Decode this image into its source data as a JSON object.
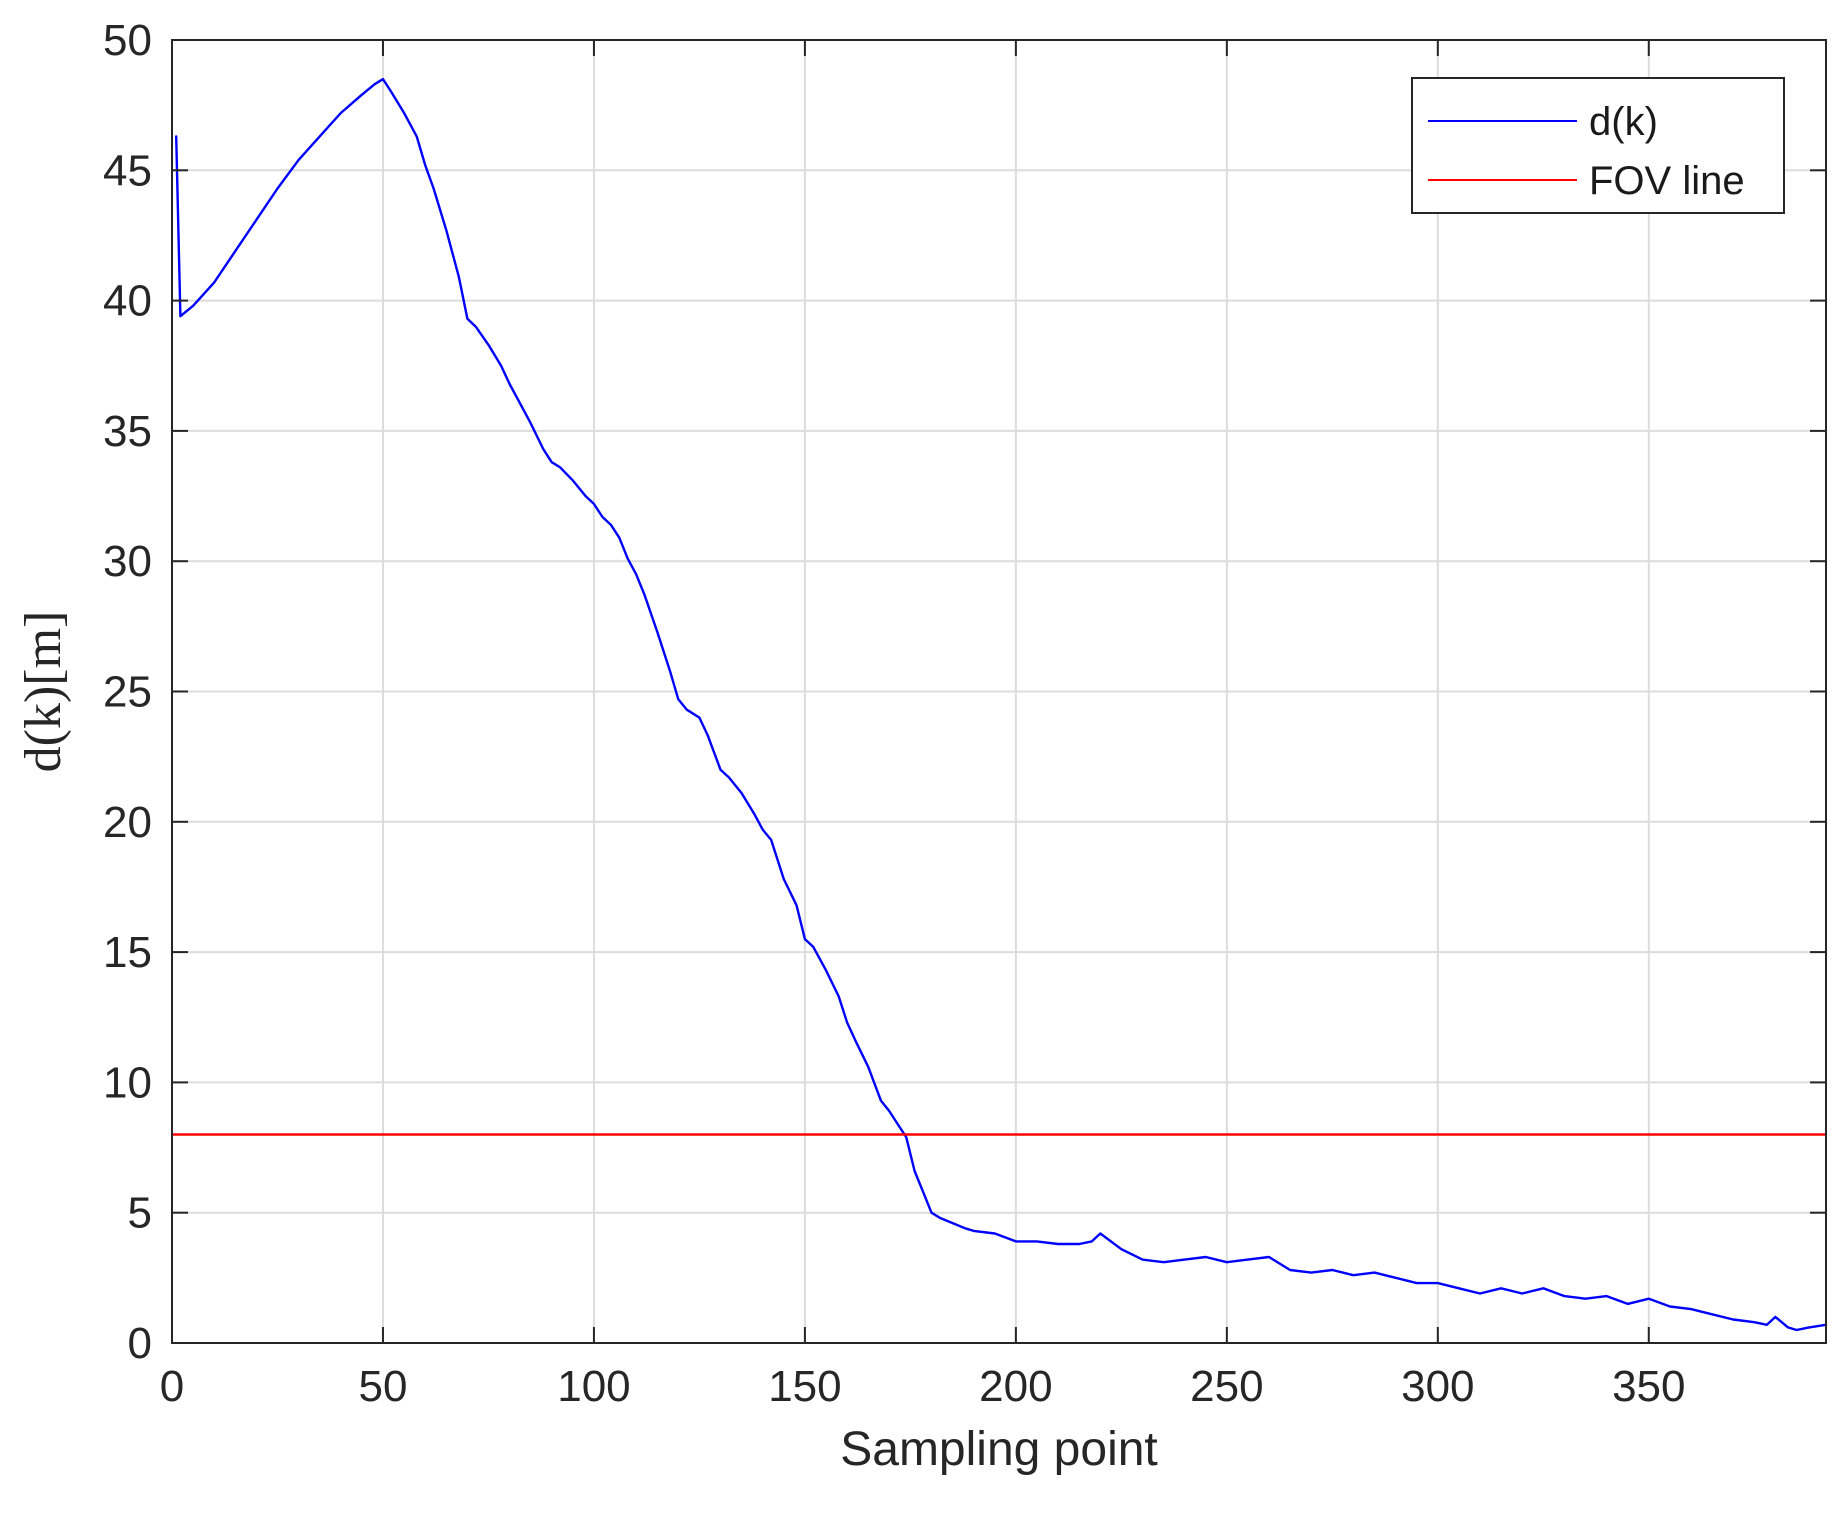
{
  "chart_data": {
    "type": "line",
    "title": "",
    "xlabel": "Sampling point",
    "ylabel": "d(k)[m]",
    "xlim": [
      0,
      392
    ],
    "ylim": [
      0,
      50
    ],
    "xticks": [
      "0",
      "50",
      "100",
      "150",
      "200",
      "250",
      "300",
      "350"
    ],
    "yticks": [
      "0",
      "5",
      "10",
      "15",
      "20",
      "25",
      "30",
      "35",
      "40",
      "45",
      "50"
    ],
    "grid": true,
    "legend_position": "top-right",
    "series": [
      {
        "name": "d(k)",
        "color": "#0000ff",
        "x": [
          1,
          2,
          5,
          10,
          15,
          20,
          25,
          30,
          35,
          40,
          45,
          48,
          50,
          52,
          55,
          58,
          60,
          62,
          65,
          68,
          70,
          72,
          75,
          78,
          80,
          82,
          85,
          88,
          90,
          92,
          95,
          98,
          100,
          102,
          104,
          106,
          108,
          110,
          112,
          115,
          118,
          120,
          122,
          125,
          127,
          130,
          132,
          135,
          138,
          140,
          142,
          145,
          148,
          150,
          152,
          155,
          158,
          160,
          162,
          165,
          168,
          170,
          172,
          174,
          176,
          178,
          180,
          182,
          185,
          188,
          190,
          195,
          200,
          205,
          210,
          215,
          218,
          220,
          225,
          230,
          235,
          240,
          245,
          250,
          255,
          260,
          265,
          270,
          275,
          280,
          285,
          290,
          295,
          300,
          305,
          310,
          315,
          320,
          325,
          330,
          335,
          340,
          345,
          350,
          355,
          360,
          365,
          370,
          375,
          378,
          380,
          383,
          385,
          388,
          392
        ],
        "y": [
          46.3,
          39.4,
          39.8,
          40.7,
          41.9,
          43.1,
          44.3,
          45.4,
          46.3,
          47.2,
          47.9,
          48.3,
          48.5,
          48.0,
          47.2,
          46.3,
          45.2,
          44.3,
          42.7,
          40.9,
          39.3,
          39.0,
          38.3,
          37.5,
          36.8,
          36.2,
          35.3,
          34.3,
          33.8,
          33.6,
          33.1,
          32.5,
          32.2,
          31.7,
          31.4,
          30.9,
          30.1,
          29.5,
          28.7,
          27.3,
          25.8,
          24.7,
          24.3,
          24.0,
          23.3,
          22.0,
          21.7,
          21.1,
          20.3,
          19.7,
          19.3,
          17.8,
          16.8,
          15.5,
          15.2,
          14.3,
          13.3,
          12.3,
          11.6,
          10.6,
          9.3,
          8.9,
          8.4,
          7.9,
          6.6,
          5.8,
          5.0,
          4.8,
          4.6,
          4.4,
          4.3,
          4.2,
          3.9,
          3.9,
          3.8,
          3.8,
          3.9,
          4.2,
          3.6,
          3.2,
          3.1,
          3.2,
          3.3,
          3.1,
          3.2,
          3.3,
          2.8,
          2.7,
          2.8,
          2.6,
          2.7,
          2.5,
          2.3,
          2.3,
          2.1,
          1.9,
          2.1,
          1.9,
          2.1,
          1.8,
          1.7,
          1.8,
          1.5,
          1.7,
          1.4,
          1.3,
          1.1,
          0.9,
          0.8,
          0.7,
          1.0,
          0.6,
          0.5,
          0.6,
          0.7
        ]
      },
      {
        "name": "FOV line",
        "color": "#ff0000",
        "x": [
          0,
          392
        ],
        "y": [
          8,
          8
        ]
      }
    ]
  }
}
